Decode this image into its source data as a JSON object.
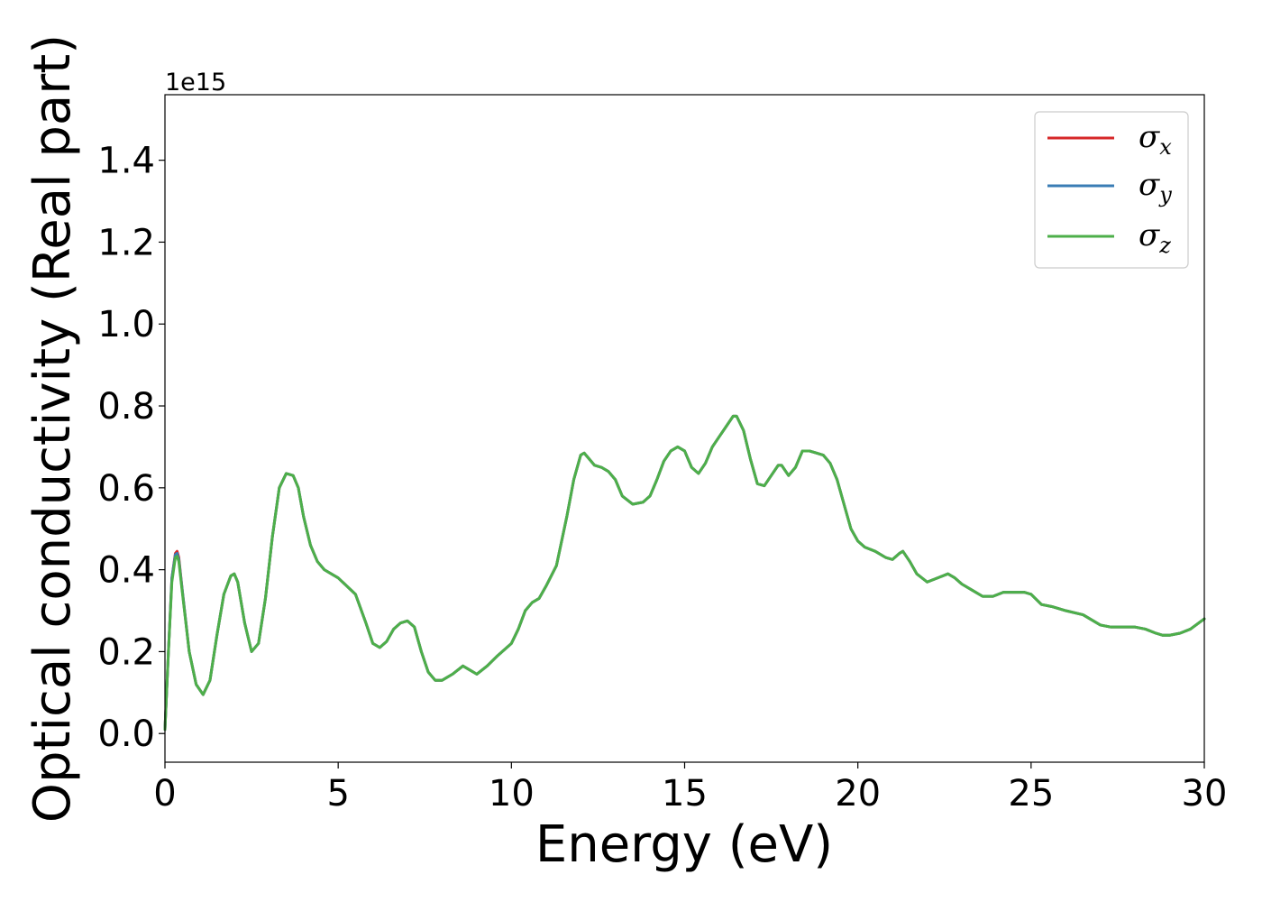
{
  "chart_data": {
    "type": "line",
    "title": "",
    "xlabel": "Energy (eV)",
    "ylabel": "Optical conductivity (Real part)",
    "y_offset_text": "1e15",
    "xlim": [
      0,
      30
    ],
    "ylim": [
      -0.07,
      1.56
    ],
    "xticks": [
      0,
      5,
      10,
      15,
      20,
      25,
      30
    ],
    "yticks": [
      0.0,
      0.2,
      0.4,
      0.6,
      0.8,
      1.0,
      1.2,
      1.4
    ],
    "xtick_labels": [
      "0",
      "5",
      "10",
      "15",
      "20",
      "25",
      "30"
    ],
    "ytick_labels": [
      "0.0",
      "0.2",
      "0.4",
      "0.6",
      "0.8",
      "1.0",
      "1.2",
      "1.4"
    ],
    "grid": false,
    "legend_position": "top-right",
    "colors": {
      "sigma_x": "#d62728",
      "sigma_y": "#3a7db5",
      "sigma_z": "#4daf4a"
    },
    "x": [
      0.0,
      0.1,
      0.2,
      0.3,
      0.35,
      0.4,
      0.5,
      0.7,
      0.9,
      1.1,
      1.3,
      1.5,
      1.7,
      1.9,
      2.0,
      2.1,
      2.3,
      2.5,
      2.7,
      2.9,
      3.1,
      3.3,
      3.5,
      3.7,
      3.85,
      4.0,
      4.2,
      4.4,
      4.6,
      5.0,
      5.5,
      5.8,
      6.0,
      6.2,
      6.4,
      6.6,
      6.8,
      7.0,
      7.2,
      7.4,
      7.6,
      7.8,
      8.0,
      8.3,
      8.6,
      8.8,
      9.0,
      9.3,
      9.6,
      10.0,
      10.2,
      10.4,
      10.6,
      10.8,
      11.0,
      11.3,
      11.6,
      11.8,
      12.0,
      12.1,
      12.2,
      12.4,
      12.6,
      12.8,
      13.0,
      13.2,
      13.5,
      13.8,
      14.0,
      14.2,
      14.4,
      14.6,
      14.8,
      15.0,
      15.2,
      15.4,
      15.6,
      15.8,
      16.0,
      16.2,
      16.4,
      16.5,
      16.7,
      16.9,
      17.1,
      17.3,
      17.5,
      17.7,
      17.8,
      18.0,
      18.2,
      18.4,
      18.6,
      18.8,
      19.0,
      19.2,
      19.4,
      19.6,
      19.8,
      20.0,
      20.2,
      20.5,
      20.8,
      21.0,
      21.2,
      21.3,
      21.5,
      21.7,
      22.0,
      22.3,
      22.6,
      22.8,
      23.0,
      23.3,
      23.6,
      23.9,
      24.2,
      24.5,
      24.8,
      25.0,
      25.3,
      25.6,
      26.0,
      26.5,
      27.0,
      27.3,
      27.6,
      28.0,
      28.3,
      28.6,
      28.8,
      29.0,
      29.3,
      29.6,
      30.0
    ],
    "series": [
      {
        "name": "σx",
        "color_key": "sigma_x",
        "values": [
          0.01,
          0.2,
          0.38,
          0.44,
          0.445,
          0.43,
          0.35,
          0.2,
          0.12,
          0.095,
          0.13,
          0.24,
          0.34,
          0.385,
          0.39,
          0.37,
          0.27,
          0.2,
          0.22,
          0.33,
          0.48,
          0.6,
          0.635,
          0.63,
          0.6,
          0.53,
          0.46,
          0.42,
          0.4,
          0.38,
          0.34,
          0.27,
          0.22,
          0.21,
          0.225,
          0.255,
          0.27,
          0.275,
          0.26,
          0.2,
          0.15,
          0.13,
          0.13,
          0.145,
          0.165,
          0.155,
          0.145,
          0.165,
          0.19,
          0.22,
          0.255,
          0.3,
          0.32,
          0.33,
          0.36,
          0.41,
          0.53,
          0.62,
          0.68,
          0.685,
          0.675,
          0.655,
          0.65,
          0.64,
          0.62,
          0.58,
          0.56,
          0.565,
          0.58,
          0.62,
          0.665,
          0.69,
          0.7,
          0.69,
          0.65,
          0.635,
          0.66,
          0.7,
          0.725,
          0.75,
          0.775,
          0.775,
          0.74,
          0.67,
          0.61,
          0.605,
          0.63,
          0.655,
          0.655,
          0.63,
          0.65,
          0.69,
          0.69,
          0.685,
          0.68,
          0.66,
          0.62,
          0.56,
          0.5,
          0.47,
          0.455,
          0.445,
          0.43,
          0.425,
          0.44,
          0.445,
          0.42,
          0.39,
          0.37,
          0.38,
          0.39,
          0.38,
          0.365,
          0.35,
          0.335,
          0.335,
          0.345,
          0.345,
          0.345,
          0.34,
          0.315,
          0.31,
          0.3,
          0.29,
          0.265,
          0.26,
          0.26,
          0.26,
          0.255,
          0.245,
          0.24,
          0.24,
          0.245,
          0.255,
          0.28
        ]
      },
      {
        "name": "σy",
        "color_key": "sigma_y",
        "values": [
          0.01,
          0.2,
          0.38,
          0.437,
          0.44,
          0.425,
          0.35,
          0.2,
          0.12,
          0.095,
          0.13,
          0.24,
          0.34,
          0.385,
          0.39,
          0.37,
          0.27,
          0.2,
          0.22,
          0.33,
          0.48,
          0.6,
          0.635,
          0.63,
          0.6,
          0.53,
          0.46,
          0.42,
          0.4,
          0.38,
          0.34,
          0.27,
          0.22,
          0.21,
          0.225,
          0.255,
          0.27,
          0.275,
          0.26,
          0.2,
          0.15,
          0.13,
          0.13,
          0.145,
          0.165,
          0.155,
          0.145,
          0.165,
          0.19,
          0.22,
          0.255,
          0.3,
          0.32,
          0.33,
          0.36,
          0.41,
          0.53,
          0.62,
          0.68,
          0.685,
          0.675,
          0.655,
          0.65,
          0.64,
          0.62,
          0.58,
          0.56,
          0.565,
          0.58,
          0.62,
          0.665,
          0.69,
          0.7,
          0.69,
          0.65,
          0.635,
          0.66,
          0.7,
          0.725,
          0.75,
          0.775,
          0.775,
          0.74,
          0.67,
          0.61,
          0.605,
          0.63,
          0.655,
          0.655,
          0.63,
          0.65,
          0.69,
          0.69,
          0.685,
          0.68,
          0.66,
          0.62,
          0.56,
          0.5,
          0.47,
          0.455,
          0.445,
          0.43,
          0.425,
          0.44,
          0.445,
          0.42,
          0.39,
          0.37,
          0.38,
          0.39,
          0.38,
          0.365,
          0.35,
          0.335,
          0.335,
          0.345,
          0.345,
          0.345,
          0.34,
          0.315,
          0.31,
          0.3,
          0.29,
          0.265,
          0.26,
          0.26,
          0.26,
          0.255,
          0.245,
          0.24,
          0.24,
          0.245,
          0.255,
          0.28
        ]
      },
      {
        "name": "σz",
        "color_key": "sigma_z",
        "values": [
          0.01,
          0.2,
          0.37,
          0.43,
          0.433,
          0.42,
          0.345,
          0.2,
          0.12,
          0.095,
          0.13,
          0.24,
          0.34,
          0.385,
          0.39,
          0.37,
          0.27,
          0.2,
          0.22,
          0.33,
          0.48,
          0.6,
          0.635,
          0.63,
          0.6,
          0.53,
          0.46,
          0.42,
          0.4,
          0.38,
          0.34,
          0.27,
          0.22,
          0.21,
          0.225,
          0.255,
          0.27,
          0.275,
          0.26,
          0.2,
          0.15,
          0.13,
          0.13,
          0.145,
          0.165,
          0.155,
          0.145,
          0.165,
          0.19,
          0.22,
          0.255,
          0.3,
          0.32,
          0.33,
          0.36,
          0.41,
          0.53,
          0.62,
          0.68,
          0.685,
          0.675,
          0.655,
          0.65,
          0.64,
          0.62,
          0.58,
          0.56,
          0.565,
          0.58,
          0.62,
          0.665,
          0.69,
          0.7,
          0.69,
          0.65,
          0.635,
          0.66,
          0.7,
          0.725,
          0.75,
          0.775,
          0.775,
          0.74,
          0.67,
          0.61,
          0.605,
          0.63,
          0.655,
          0.655,
          0.63,
          0.65,
          0.69,
          0.69,
          0.685,
          0.68,
          0.66,
          0.62,
          0.56,
          0.5,
          0.47,
          0.455,
          0.445,
          0.43,
          0.425,
          0.44,
          0.445,
          0.42,
          0.39,
          0.37,
          0.38,
          0.39,
          0.38,
          0.365,
          0.35,
          0.335,
          0.335,
          0.345,
          0.345,
          0.345,
          0.34,
          0.315,
          0.31,
          0.3,
          0.29,
          0.265,
          0.26,
          0.26,
          0.26,
          0.255,
          0.245,
          0.24,
          0.24,
          0.245,
          0.255,
          0.28
        ]
      }
    ]
  }
}
